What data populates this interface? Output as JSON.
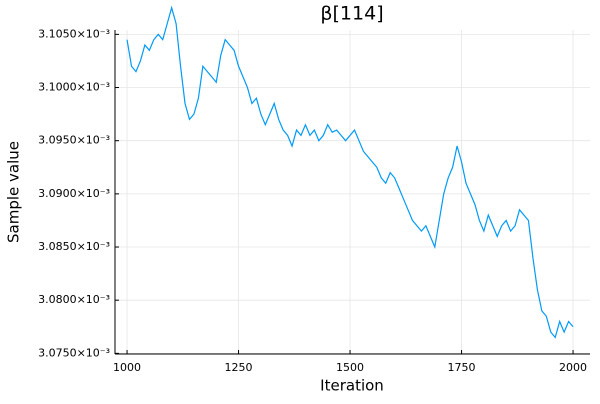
{
  "chart_data": {
    "type": "line",
    "title": "β[114]",
    "xlabel": "Iteration",
    "ylabel": "Sample value",
    "x": [
      1000,
      1010,
      1020,
      1030,
      1040,
      1050,
      1060,
      1070,
      1080,
      1090,
      1100,
      1110,
      1120,
      1130,
      1140,
      1150,
      1160,
      1170,
      1180,
      1190,
      1200,
      1210,
      1220,
      1230,
      1240,
      1250,
      1260,
      1270,
      1280,
      1290,
      1300,
      1310,
      1320,
      1330,
      1340,
      1350,
      1360,
      1370,
      1380,
      1390,
      1400,
      1410,
      1420,
      1430,
      1440,
      1450,
      1460,
      1470,
      1480,
      1490,
      1500,
      1510,
      1520,
      1530,
      1540,
      1550,
      1560,
      1570,
      1580,
      1590,
      1600,
      1610,
      1620,
      1630,
      1640,
      1650,
      1660,
      1670,
      1680,
      1690,
      1700,
      1710,
      1720,
      1730,
      1740,
      1750,
      1760,
      1770,
      1780,
      1790,
      1800,
      1810,
      1820,
      1830,
      1840,
      1850,
      1860,
      1870,
      1880,
      1890,
      1900,
      1910,
      1920,
      1930,
      1940,
      1950,
      1960,
      1970,
      1980,
      1990,
      2000
    ],
    "series": [
      {
        "color": "#009af9",
        "values": [
          0.0031045,
          0.003102,
          0.0031015,
          0.0031025,
          0.003104,
          0.0031035,
          0.0031045,
          0.003105,
          0.0031045,
          0.003106,
          0.0031075,
          0.003106,
          0.003102,
          0.0030985,
          0.003097,
          0.0030975,
          0.003099,
          0.003102,
          0.0031015,
          0.003101,
          0.0031005,
          0.003103,
          0.0031045,
          0.003104,
          0.0031035,
          0.003102,
          0.003101,
          0.0031,
          0.0030985,
          0.003099,
          0.0030975,
          0.0030965,
          0.0030975,
          0.0030985,
          0.003097,
          0.003096,
          0.0030955,
          0.0030945,
          0.003096,
          0.0030955,
          0.0030965,
          0.0030955,
          0.003096,
          0.003095,
          0.0030955,
          0.0030965,
          0.0030958,
          0.003096,
          0.0030955,
          0.003095,
          0.0030955,
          0.003096,
          0.003095,
          0.003094,
          0.0030935,
          0.003093,
          0.0030925,
          0.0030915,
          0.003091,
          0.003092,
          0.0030915,
          0.0030905,
          0.0030895,
          0.0030885,
          0.0030875,
          0.003087,
          0.0030865,
          0.003087,
          0.003086,
          0.003085,
          0.0030875,
          0.00309,
          0.0030915,
          0.0030925,
          0.0030945,
          0.003093,
          0.003091,
          0.00309,
          0.003089,
          0.0030875,
          0.0030865,
          0.003088,
          0.003087,
          0.003086,
          0.003087,
          0.0030875,
          0.0030865,
          0.003087,
          0.0030885,
          0.003088,
          0.0030875,
          0.003084,
          0.003081,
          0.003079,
          0.0030785,
          0.003077,
          0.0030765,
          0.003078,
          0.003077,
          0.003078,
          0.0030775
        ]
      }
    ],
    "xlim": [
      973,
      2038
    ],
    "xticks": [
      1000,
      1250,
      1500,
      1750,
      2000
    ],
    "ylim": [
      0.00307494,
      0.00310541
    ],
    "yticks": [
      {
        "value": 0.003075,
        "label": "3.0750×10⁻³"
      },
      {
        "value": 0.00308,
        "label": "3.0800×10⁻³"
      },
      {
        "value": 0.003085,
        "label": "3.0850×10⁻³"
      },
      {
        "value": 0.00309,
        "label": "3.0900×10⁻³"
      },
      {
        "value": 0.003095,
        "label": "3.0950×10⁻³"
      },
      {
        "value": 0.0031,
        "label": "3.1000×10⁻³"
      },
      {
        "value": 0.003105,
        "label": "3.1050×10⁻³"
      }
    ],
    "grid": true
  }
}
